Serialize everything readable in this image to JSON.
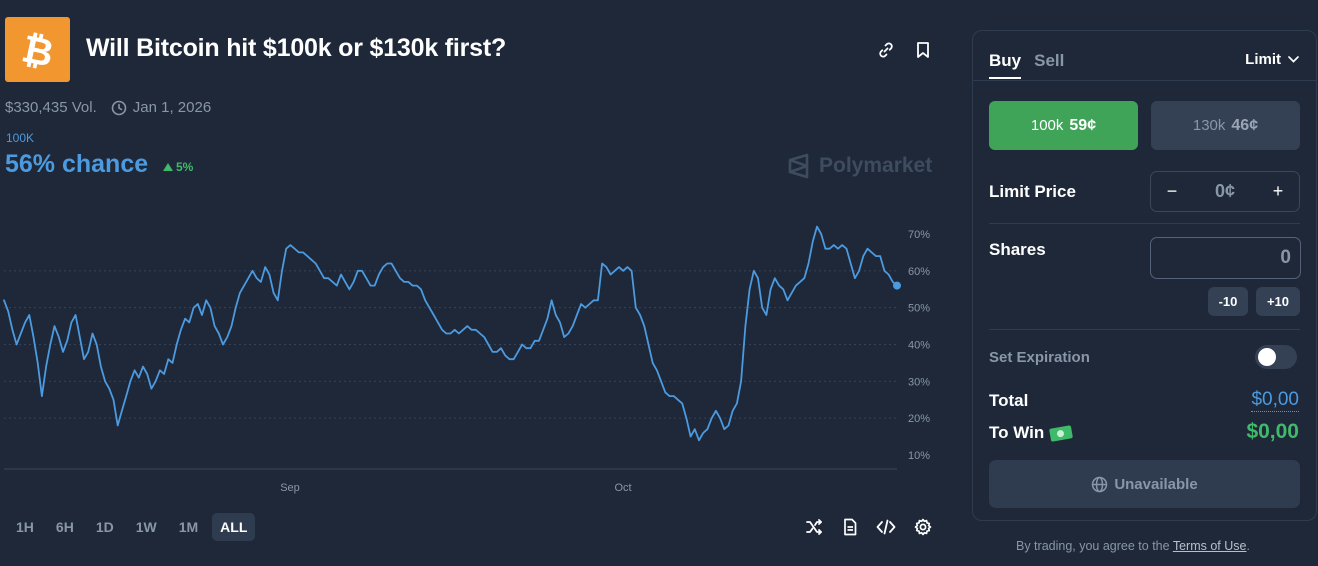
{
  "market": {
    "title": "Will Bitcoin hit $100k or $130k first?",
    "volume": "$330,435 Vol.",
    "end_date": "Jan 1, 2026",
    "outcome_label": "100K",
    "chance": "56% chance",
    "change": "5%",
    "watermark": "Polymarket"
  },
  "chart_data": {
    "type": "line",
    "y_ticks": [
      "70%",
      "60%",
      "50%",
      "40%",
      "30%",
      "20%",
      "10%"
    ],
    "x_ticks": [
      "Sep",
      "Oct"
    ],
    "ylim": [
      10,
      70
    ],
    "grid": true,
    "series": [
      {
        "color": "#4c9ae0",
        "values": [
          52,
          49,
          44,
          40,
          43,
          46,
          48,
          42,
          35,
          26,
          34,
          40,
          45,
          42,
          38,
          41,
          46,
          48,
          42,
          36,
          38,
          43,
          40,
          34,
          30,
          28,
          25,
          18,
          22,
          26,
          30,
          33,
          31,
          34,
          32,
          28,
          30,
          33,
          32,
          36,
          35,
          40,
          44,
          47,
          46,
          50,
          51,
          48,
          52,
          50,
          45,
          43,
          40,
          42,
          45,
          50,
          54,
          56,
          58,
          60,
          58,
          57,
          61,
          59,
          54,
          52,
          60,
          66,
          67,
          66,
          65,
          65,
          64,
          63,
          62,
          60,
          58,
          58,
          57,
          56,
          59,
          57,
          55,
          57,
          60,
          60,
          58,
          56,
          56,
          59,
          61,
          62,
          62,
          60,
          58,
          57,
          57,
          56,
          56,
          55,
          52,
          50,
          48,
          46,
          44,
          43,
          43,
          44,
          43,
          44,
          45,
          44,
          44,
          43,
          42,
          40,
          38,
          38,
          39,
          37,
          36,
          36,
          38,
          40,
          39,
          39,
          41,
          41,
          44,
          47,
          52,
          48,
          46,
          42,
          43,
          45,
          48,
          51,
          50,
          51,
          52,
          52,
          62,
          61,
          59,
          60,
          61,
          60,
          61,
          60,
          50,
          48,
          45,
          40,
          35,
          33,
          30,
          27,
          26,
          26,
          25,
          24,
          20,
          15,
          17,
          14,
          16,
          17,
          20,
          22,
          20,
          17,
          18,
          22,
          24,
          30,
          45,
          55,
          60,
          58,
          50,
          48,
          55,
          58,
          56,
          55,
          52,
          54,
          56,
          57,
          58,
          62,
          68,
          72,
          70,
          66,
          66,
          67,
          66,
          67,
          66,
          62,
          58,
          60,
          64,
          66,
          65,
          64,
          64,
          60,
          59,
          57,
          56
        ]
      }
    ]
  },
  "ranges": [
    "1H",
    "6H",
    "1D",
    "1W",
    "1M",
    "ALL"
  ],
  "active_range": "ALL",
  "trade": {
    "tab_buy": "Buy",
    "tab_sell": "Sell",
    "order_type": "Limit",
    "yes_label": "100k",
    "yes_price": "59¢",
    "no_label": "130k",
    "no_price": "46¢",
    "limit_price_label": "Limit Price",
    "limit_price_value": "0¢",
    "minus": "−",
    "plus": "+",
    "shares_label": "Shares",
    "shares_value": "0",
    "minus10": "-10",
    "plus10": "+10",
    "expiration_label": "Set Expiration",
    "total_label": "Total",
    "total_value": "$0,00",
    "to_win_label": "To Win",
    "to_win_value": "$0,00",
    "submit_label": "Unavailable"
  },
  "disclaimer_text": "By trading, you agree to the",
  "terms_link": "Terms of Use",
  "disclaimer_end": "."
}
